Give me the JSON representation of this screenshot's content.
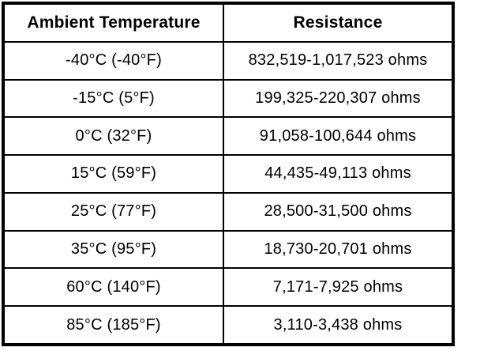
{
  "chart_data": {
    "type": "table",
    "columns": [
      "Ambient Temperature",
      "Resistance"
    ],
    "rows": [
      {
        "temp": "-40°C (-40°F)",
        "resistance": "832,519-1,017,523 ohms"
      },
      {
        "temp": "-15°C (5°F)",
        "resistance": "199,325-220,307 ohms"
      },
      {
        "temp": "0°C (32°F)",
        "resistance": "91,058-100,644 ohms"
      },
      {
        "temp": "15°C (59°F)",
        "resistance": "44,435-49,113 ohms"
      },
      {
        "temp": "25°C (77°F)",
        "resistance": "28,500-31,500 ohms"
      },
      {
        "temp": "35°C (95°F)",
        "resistance": "18,730-20,701 ohms"
      },
      {
        "temp": "60°C (140°F)",
        "resistance": "7,171-7,925 ohms"
      },
      {
        "temp": "85°C (185°F)",
        "resistance": "3,110-3,438 ohms"
      }
    ],
    "numeric": {
      "temperature_c": [
        -40,
        -15,
        0,
        15,
        25,
        35,
        60,
        85
      ],
      "temperature_f": [
        -40,
        5,
        32,
        59,
        77,
        95,
        140,
        185
      ],
      "resistance_min_ohms": [
        832519,
        199325,
        91058,
        44435,
        28500,
        18730,
        7171,
        3110
      ],
      "resistance_max_ohms": [
        1017523,
        220307,
        100644,
        49113,
        31500,
        20701,
        7925,
        3438
      ]
    },
    "layout": {
      "grid": "on",
      "header_style": "bold",
      "alignment": "center"
    }
  },
  "colors": {
    "border": "#000000",
    "background": "#ffffff",
    "text": "#000000"
  }
}
